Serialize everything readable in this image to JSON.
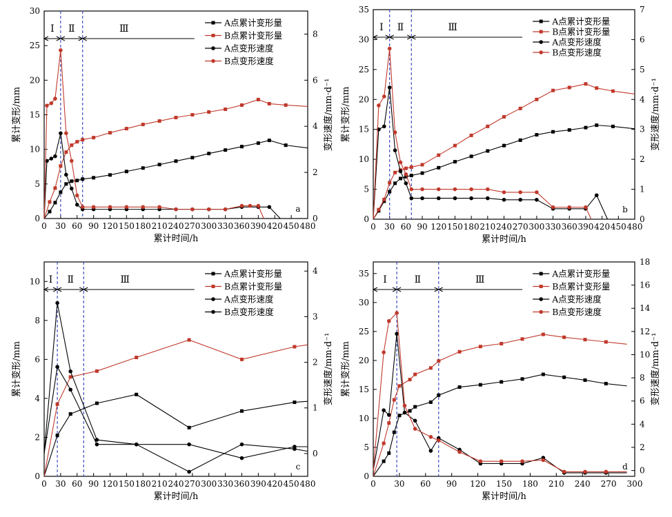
{
  "figure": {
    "panels": [
      {
        "id": "a",
        "label": "a"
      },
      {
        "id": "b",
        "label": "b"
      },
      {
        "id": "c",
        "label": "c"
      },
      {
        "id": "d",
        "label": "d"
      }
    ]
  },
  "chart_data": [
    {
      "id": "a",
      "type": "line",
      "xlabel": "累计时间/h",
      "ylabel_left": "累计变形/mm",
      "ylabel_right": "变形速度/mm·d⁻¹",
      "xlim": [
        0,
        480
      ],
      "ylim_left": [
        0,
        30
      ],
      "ylim_right": [
        0,
        9
      ],
      "xticks": [
        0,
        30,
        60,
        90,
        120,
        150,
        180,
        210,
        240,
        270,
        300,
        330,
        360,
        390,
        420,
        450,
        480
      ],
      "yticks_left": [
        0,
        5,
        10,
        15,
        20,
        25,
        30
      ],
      "yticks_right": [
        0,
        2,
        4,
        6,
        8
      ],
      "stage_lines": [
        30,
        70
      ],
      "stages": [
        "Ⅰ",
        "Ⅱ",
        "Ⅲ"
      ],
      "panel_label": "a",
      "series": [
        {
          "name": "A点累计变形量",
          "axis": "left",
          "color": "#000000",
          "marker": "square",
          "x": [
            0,
            10,
            20,
            30,
            40,
            50,
            60,
            70,
            90,
            120,
            150,
            180,
            210,
            240,
            270,
            300,
            330,
            360,
            390,
            410,
            440,
            480
          ],
          "y": [
            0,
            1.0,
            2.3,
            3.8,
            5.0,
            5.4,
            5.5,
            5.7,
            5.9,
            6.3,
            6.8,
            7.3,
            7.8,
            8.3,
            8.8,
            9.4,
            9.9,
            10.4,
            10.9,
            11.3,
            10.6,
            10.2
          ]
        },
        {
          "name": "B点累计变形量",
          "axis": "left",
          "color": "#c0392b",
          "marker": "square",
          "x": [
            0,
            10,
            20,
            30,
            40,
            50,
            60,
            70,
            90,
            120,
            150,
            180,
            210,
            240,
            270,
            300,
            330,
            360,
            390,
            410,
            440,
            480
          ],
          "y": [
            0,
            2.4,
            4.4,
            7.6,
            9.6,
            10.6,
            11.1,
            11.4,
            11.7,
            12.4,
            13.0,
            13.6,
            14.1,
            14.6,
            15.0,
            15.4,
            15.8,
            16.4,
            17.2,
            16.6,
            16.4,
            16.2
          ]
        },
        {
          "name": "A点变形速度",
          "axis": "right",
          "color": "#000000",
          "marker": "circle",
          "x": [
            0,
            5,
            13,
            20,
            30,
            40,
            50,
            60,
            70,
            90,
            120,
            150,
            180,
            210,
            240,
            270,
            300,
            330,
            360,
            390,
            410,
            430
          ],
          "y": [
            0,
            2.5,
            2.6,
            2.7,
            3.7,
            1.9,
            1.3,
            0.6,
            0.4,
            0.4,
            0.4,
            0.4,
            0.4,
            0.4,
            0.4,
            0.4,
            0.4,
            0.4,
            0.5,
            0.5,
            0.5,
            0
          ]
        },
        {
          "name": "B点变形速度",
          "axis": "right",
          "color": "#c0392b",
          "marker": "circle",
          "x": [
            0,
            5,
            13,
            20,
            30,
            40,
            50,
            60,
            70,
            90,
            120,
            150,
            180,
            210,
            240,
            270,
            300,
            330,
            360,
            375,
            390,
            400
          ],
          "y": [
            0,
            4.9,
            5.0,
            5.2,
            7.3,
            3.7,
            2.5,
            1.0,
            0.5,
            0.5,
            0.5,
            0.5,
            0.5,
            0.5,
            0.4,
            0.4,
            0.4,
            0.4,
            0.55,
            0.55,
            0.55,
            0
          ]
        }
      ],
      "legend": [
        "A点累计变形量",
        "B点累计变形量",
        "A点变形速度",
        "B点变形速度"
      ]
    },
    {
      "id": "b",
      "type": "line",
      "xlabel": "累计时间/h",
      "ylabel_left": "累计变形/mm",
      "ylabel_right": "变形速度/mm·d⁻¹",
      "xlim": [
        0,
        480
      ],
      "ylim_left": [
        0,
        35
      ],
      "ylim_right": [
        0,
        7
      ],
      "xticks": [
        0,
        30,
        60,
        90,
        120,
        150,
        180,
        210,
        240,
        270,
        300,
        330,
        360,
        390,
        420,
        450,
        480
      ],
      "yticks_left": [
        0,
        5,
        10,
        15,
        20,
        25,
        30,
        35
      ],
      "yticks_right": [
        0,
        1,
        2,
        3,
        4,
        5,
        6,
        7
      ],
      "stage_lines": [
        30,
        70
      ],
      "stages": [
        "Ⅰ",
        "Ⅱ",
        "Ⅲ"
      ],
      "panel_label": "b",
      "series": [
        {
          "name": "A点累计变形量",
          "axis": "left",
          "color": "#000000",
          "marker": "square",
          "x": [
            0,
            10,
            20,
            30,
            40,
            50,
            60,
            70,
            90,
            120,
            150,
            180,
            210,
            240,
            270,
            300,
            330,
            360,
            390,
            410,
            440,
            480
          ],
          "y": [
            0,
            1.4,
            3.0,
            4.6,
            6.0,
            6.8,
            7.1,
            7.3,
            7.7,
            8.6,
            9.6,
            10.5,
            11.4,
            12.3,
            13.2,
            14.1,
            14.6,
            14.9,
            15.3,
            15.7,
            15.5,
            15.1
          ]
        },
        {
          "name": "B点累计变形量",
          "axis": "left",
          "color": "#c0392b",
          "marker": "square",
          "x": [
            0,
            10,
            20,
            30,
            40,
            50,
            60,
            70,
            90,
            120,
            150,
            180,
            210,
            240,
            270,
            300,
            330,
            360,
            390,
            410,
            440,
            480
          ],
          "y": [
            0,
            1.6,
            3.3,
            6.1,
            7.8,
            8.2,
            8.5,
            8.7,
            9.1,
            10.7,
            12.3,
            14.0,
            15.5,
            17.1,
            18.5,
            20.0,
            21.5,
            22.0,
            22.6,
            21.9,
            21.4,
            20.9
          ]
        },
        {
          "name": "A点变形速度",
          "axis": "right",
          "color": "#000000",
          "marker": "circle",
          "x": [
            0,
            10,
            20,
            30,
            40,
            50,
            60,
            70,
            90,
            120,
            150,
            180,
            210,
            240,
            270,
            300,
            330,
            360,
            390,
            410,
            430
          ],
          "y": [
            0,
            3.0,
            3.1,
            4.4,
            2.3,
            1.6,
            1.2,
            0.7,
            0.7,
            0.7,
            0.7,
            0.7,
            0.7,
            0.65,
            0.65,
            0.65,
            0.35,
            0.35,
            0.35,
            0.8,
            0
          ]
        },
        {
          "name": "B点变形速度",
          "axis": "right",
          "color": "#c0392b",
          "marker": "circle",
          "x": [
            0,
            10,
            20,
            30,
            40,
            50,
            60,
            70,
            90,
            120,
            150,
            180,
            210,
            240,
            270,
            300,
            330,
            360,
            390,
            400
          ],
          "y": [
            0,
            3.8,
            4.1,
            5.7,
            2.9,
            1.9,
            1.5,
            1.0,
            1.0,
            1.0,
            1.0,
            1.0,
            1.0,
            0.9,
            0.9,
            0.9,
            0.4,
            0.4,
            0.4,
            0
          ]
        }
      ],
      "legend": [
        "A点累计变形量",
        "B点累计变形量",
        "A点变形速度",
        "B点变形速度"
      ]
    },
    {
      "id": "c",
      "type": "line",
      "xlabel": "累计时间/h",
      "ylabel_left": "累计变形/mm",
      "ylabel_right": "变形速度/mm·d⁻¹",
      "xlim": [
        0,
        480
      ],
      "ylim_left": [
        0,
        11
      ],
      "ylim_right": [
        -0.5,
        4.2
      ],
      "xticks": [
        0,
        30,
        60,
        90,
        120,
        150,
        180,
        210,
        240,
        270,
        300,
        330,
        360,
        390,
        420,
        450,
        480
      ],
      "yticks_left": [
        0,
        2,
        4,
        6,
        8,
        10
      ],
      "yticks_right": [
        0,
        1,
        2,
        3,
        4
      ],
      "stage_lines": [
        24,
        72
      ],
      "stages": [
        "Ⅰ",
        "Ⅱ",
        "Ⅲ"
      ],
      "panel_label": "c",
      "series": [
        {
          "name": "A点累计变形量",
          "axis": "left",
          "color": "#000000",
          "marker": "square",
          "x": [
            0,
            24,
            48,
            96,
            168,
            264,
            360,
            456,
            480
          ],
          "y": [
            0,
            2.1,
            3.2,
            3.75,
            4.2,
            2.5,
            3.35,
            3.8,
            3.85
          ]
        },
        {
          "name": "B点累计变形量",
          "axis": "left",
          "color": "#c0392b",
          "marker": "square",
          "x": [
            0,
            24,
            48,
            96,
            168,
            264,
            360,
            456,
            480
          ],
          "y": [
            0,
            3.7,
            5.1,
            5.4,
            6.1,
            7.0,
            6.0,
            6.65,
            6.75
          ]
        },
        {
          "name": "A点变形速度",
          "axis": "right",
          "color": "#000000",
          "marker": "circle",
          "x": [
            0,
            24,
            48,
            96,
            168,
            264,
            360,
            456,
            480
          ],
          "y": [
            0,
            3.3,
            1.8,
            0.3,
            0.2,
            -0.4,
            0.2,
            0.1,
            0.05
          ]
        },
        {
          "name": "B点变形速度",
          "axis": "right",
          "color": "#000000",
          "marker": "circle",
          "x": [
            0,
            24,
            48,
            96,
            168,
            264,
            360,
            456,
            480
          ],
          "y": [
            0,
            1.9,
            1.4,
            0.2,
            0.2,
            0.2,
            -0.1,
            0.15,
            0.15
          ]
        }
      ],
      "legend": [
        "A点累计变形量",
        "B点累计变形量",
        "A点变形速度",
        "B点变形速度"
      ]
    },
    {
      "id": "d",
      "type": "line",
      "xlabel": "累计时间/h",
      "ylabel_left": "累计变形/mm",
      "ylabel_right": "变形速度/mm·d⁻¹",
      "xlim": [
        0,
        300
      ],
      "ylim_left": [
        0,
        37
      ],
      "ylim_right": [
        -0.5,
        18
      ],
      "xticks": [
        0,
        30,
        60,
        90,
        120,
        150,
        180,
        210,
        240,
        270,
        300
      ],
      "yticks_left": [
        0,
        5,
        10,
        15,
        20,
        25,
        30,
        35
      ],
      "yticks_right": [
        0,
        2,
        4,
        6,
        8,
        10,
        12,
        14,
        16,
        18
      ],
      "stage_lines": [
        27,
        75
      ],
      "stages": [
        "Ⅰ",
        "Ⅱ",
        "Ⅲ"
      ],
      "panel_label": "d",
      "series": [
        {
          "name": "A点累计变形量",
          "axis": "left",
          "color": "#000000",
          "marker": "square",
          "x": [
            0,
            12,
            18,
            24,
            30,
            42,
            48,
            66,
            75,
            99,
            123,
            147,
            171,
            195,
            219,
            243,
            267,
            291
          ],
          "y": [
            0,
            2.6,
            4.0,
            7.6,
            10.5,
            11.3,
            12.0,
            12.8,
            14.0,
            15.4,
            15.8,
            16.3,
            16.8,
            17.6,
            17.1,
            16.6,
            16.0,
            15.6
          ]
        },
        {
          "name": "B点累计变形量",
          "axis": "left",
          "color": "#c0392b",
          "marker": "square",
          "x": [
            0,
            12,
            18,
            24,
            30,
            42,
            48,
            66,
            75,
            99,
            123,
            147,
            171,
            195,
            219,
            243,
            267,
            291
          ],
          "y": [
            0,
            5.7,
            9.2,
            13.2,
            15.6,
            16.7,
            17.6,
            18.7,
            19.9,
            21.5,
            22.4,
            22.9,
            23.7,
            24.5,
            24.0,
            23.6,
            23.2,
            22.8
          ]
        },
        {
          "name": "A点变形速度",
          "axis": "right",
          "color": "#000000",
          "marker": "circle",
          "x": [
            0,
            12,
            18,
            27,
            36,
            48,
            66,
            75,
            99,
            123,
            147,
            171,
            195,
            219,
            243,
            267,
            291
          ],
          "y": [
            0,
            5.2,
            4.8,
            11.8,
            5.0,
            4.3,
            1.7,
            2.8,
            1.8,
            0.6,
            0.6,
            0.6,
            1.1,
            -0.2,
            -0.2,
            -0.2,
            -0.2
          ]
        },
        {
          "name": "B点变形速度",
          "axis": "right",
          "color": "#c0392b",
          "marker": "circle",
          "x": [
            0,
            12,
            18,
            27,
            36,
            48,
            66,
            75,
            99,
            123,
            147,
            171,
            195,
            219,
            243,
            267,
            291
          ],
          "y": [
            0,
            10.2,
            12.9,
            13.6,
            5.6,
            3.6,
            2.9,
            2.6,
            1.6,
            0.8,
            0.8,
            0.8,
            0.9,
            -0.1,
            -0.1,
            -0.1,
            -0.1
          ]
        }
      ],
      "legend": [
        "A点累计变形量",
        "B点累计变形量",
        "A点变形速度",
        "B点变形速度"
      ]
    }
  ]
}
